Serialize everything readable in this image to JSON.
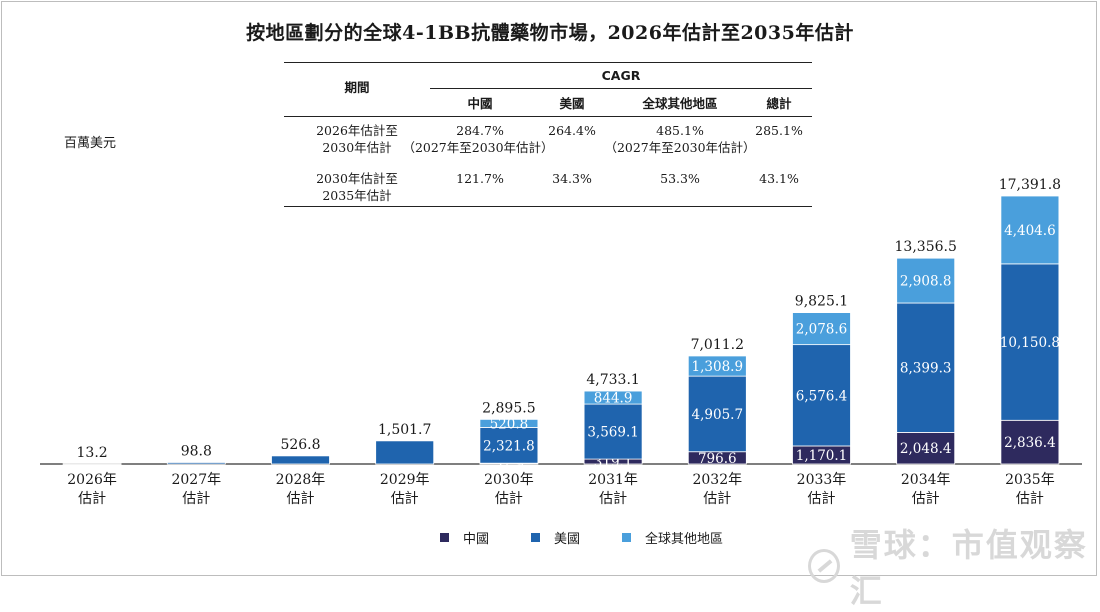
{
  "title": "按地區劃分的全球4-1BB抗體藥物市場，2026年估計至2035年估計",
  "unit_label": "百萬美元",
  "cagr_table": {
    "period_header": "期間",
    "cagr_header": "CAGR",
    "col_headers": [
      "中國",
      "美國",
      "全球其他地區",
      "總計"
    ],
    "rows": [
      {
        "period": [
          "2026年估計至",
          "2030年估計"
        ],
        "values": [
          "284.7%",
          "264.4%",
          "485.1%",
          "285.1%"
        ],
        "notes": [
          "（2027年至2030年估計）",
          "（2027年至2030年估計）"
        ]
      },
      {
        "period": [
          "2030年估計至",
          "2035年估計"
        ],
        "values": [
          "121.7%",
          "34.3%",
          "53.3%",
          "43.1%"
        ]
      }
    ]
  },
  "legend": {
    "china": "中國",
    "usa": "美國",
    "rest": "全球其他地區"
  },
  "watermark": {
    "text": "雪球：市值观察汇"
  },
  "chart_data": {
    "type": "bar",
    "stacked": true,
    "categories": [
      [
        "2026年",
        "估計"
      ],
      [
        "2027年",
        "估計"
      ],
      [
        "2028年",
        "估計"
      ],
      [
        "2029年",
        "估計"
      ],
      [
        "2030年",
        "估計"
      ],
      [
        "2031年",
        "估計"
      ],
      [
        "2032年",
        "估計"
      ],
      [
        "2033年",
        "估計"
      ],
      [
        "2034年",
        "估計"
      ],
      [
        "2035年",
        "估計"
      ]
    ],
    "series": [
      {
        "name": "中國",
        "color": "#2e2a5e",
        "values": [
          0,
          0,
          0,
          0,
          52.9,
          319.1,
          796.6,
          1170.1,
          2048.4,
          2836.4
        ],
        "labels": [
          "",
          "",
          "",
          "",
          "52.9",
          "319.1",
          "796.6",
          "1,170.1",
          "2,048.4",
          "2,836.4"
        ]
      },
      {
        "name": "美國",
        "color": "#1f64ae",
        "values": [
          13.2,
          98.8,
          526.8,
          1501.7,
          2321.8,
          3569.1,
          4905.7,
          6576.4,
          8399.3,
          10150.8
        ],
        "labels": [
          "",
          "",
          "",
          "",
          "2,321.8",
          "3,569.1",
          "4,905.7",
          "6,576.4",
          "8,399.3",
          "10,150.8"
        ]
      },
      {
        "name": "全球其他地區",
        "color": "#4a9fdc",
        "values": [
          0,
          0,
          0,
          0,
          520.8,
          844.9,
          1308.9,
          2078.6,
          2908.8,
          4404.6
        ],
        "labels": [
          "",
          "",
          "",
          "",
          "520.8",
          "844.9",
          "1,308.9",
          "2,078.6",
          "2,908.8",
          "4,404.6"
        ]
      }
    ],
    "totals": [
      13.2,
      98.8,
      526.8,
      1501.7,
      2895.5,
      4733.1,
      7011.2,
      9825.1,
      13356.5,
      17391.8
    ],
    "total_labels": [
      "13.2",
      "98.8",
      "526.8",
      "1,501.7",
      "2,895.5",
      "4,733.1",
      "7,011.2",
      "9,825.1",
      "13,356.5",
      "17,391.8"
    ],
    "ylim": [
      0,
      17391.8
    ],
    "grid": false,
    "legend_position": "bottom"
  }
}
